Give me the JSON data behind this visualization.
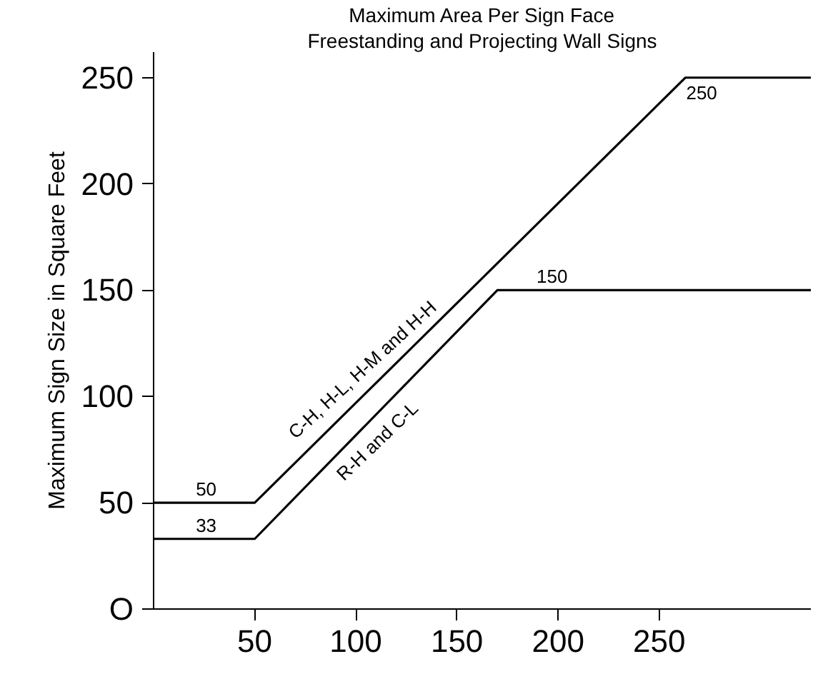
{
  "chart_data": {
    "type": "line",
    "title": "Maximum Area Per Sign Face",
    "subtitle": "Freestanding and Projecting Wall Signs",
    "ylabel": "Maximum Sign Size in Square Feet",
    "series": [
      {
        "name": "C-H, H-L, H-M and H-H",
        "color": "#000000",
        "x": [
          0,
          50,
          263,
          325
        ],
        "values": [
          50,
          50,
          250,
          250
        ]
      },
      {
        "name": "R-H and C-L",
        "color": "#000000",
        "x": [
          0,
          50,
          170,
          325
        ],
        "values": [
          33,
          33,
          150,
          150
        ]
      }
    ],
    "annotations": [
      {
        "text": "50",
        "x": 26,
        "y": 50
      },
      {
        "text": "33",
        "x": 26,
        "y": 33
      },
      {
        "text": "150",
        "x": 197,
        "y": 150
      },
      {
        "text": "250",
        "x": 271,
        "y": 250
      }
    ],
    "xlim": [
      0,
      325
    ],
    "ylim": [
      0,
      262
    ],
    "xticks": [
      50,
      100,
      150,
      200,
      250
    ],
    "yticks": [
      {
        "value": 0,
        "label": "O"
      },
      50,
      100,
      150,
      200,
      250
    ],
    "grid": false,
    "marker": "none",
    "line_style": "solid"
  }
}
